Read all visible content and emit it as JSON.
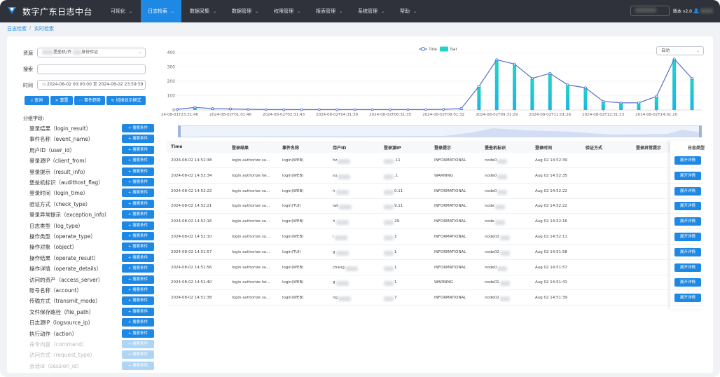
{
  "nav": {
    "logo": "数字广东日志中台",
    "menu": [
      "可视化",
      "日志检索",
      "数据采集",
      "数据管理",
      "权限管理",
      "报表管理",
      "系统管理",
      "帮助"
    ],
    "active_menu": 1,
    "version": "版本 v2.0"
  },
  "breadcrumb": [
    "日志检索",
    "实时检索"
  ],
  "form": {
    "resource_label": "资源",
    "resource_value_a": "堡垒机/齐",
    "resource_value_b": "身份验证",
    "search_label": "搜索",
    "time_label": "时间",
    "time_start": "2024-08-02 00:00:00",
    "time_sep": "至",
    "time_end": "2024-08-02 23:59:59",
    "buttons": [
      "查询",
      "重置",
      "事件趋势",
      "切换显示模式"
    ]
  },
  "group": {
    "title": "分组字段:",
    "button": "搜索条件",
    "fields": [
      "登录结果（login_result）",
      "事件名称（event_name）",
      "用户ID（user_id）",
      "登录源IP（client_from）",
      "登录提示（result_info）",
      "堡垒机标识（audithost_flag）",
      "登录时间（login_time）",
      "验证方式（check_type）",
      "登录异常提示（exception_info）",
      "日志类型（log_type）",
      "操作类型（operate_type）",
      "操作对象（object）",
      "操作结果（operate_result）",
      "操作详情（operate_details）",
      "访问的资产（access_server）",
      "账号名称（account）",
      "传输方式（transmit_mode）",
      "文件保存路径（file_path）",
      "日志源IP（logsource_ip）",
      "执行动作（action）",
      "命令内容（command）",
      "访问方式（request_type）",
      "会话id（session_id）"
    ],
    "faded_from": 20
  },
  "interval_select": "自动",
  "chart_data": {
    "type": "bar-line",
    "categories": [
      "2024-08-01T23:31:46",
      null,
      null,
      "2024-08-02T01:01:46",
      null,
      null,
      "2024-08-02T02:31:43",
      null,
      null,
      "2024-08-02T04:31:39",
      null,
      null,
      "2024-08-02T06:31:35",
      null,
      null,
      "2024-08-02T08:01:32",
      null,
      null,
      "2024-08-02T09:31:29",
      null,
      null,
      "2024-08-02T11:01:26",
      null,
      null,
      "2024-08-02T12:31:23",
      null,
      null,
      "2024-08-02T14:01:20",
      null,
      null
    ],
    "series": [
      {
        "name": "line",
        "type": "line",
        "color": "#5470c6",
        "values": [
          5,
          18,
          10,
          8,
          5,
          3,
          3,
          3,
          3,
          3,
          3,
          3,
          3,
          3,
          3,
          5,
          10,
          165,
          350,
          320,
          220,
          255,
          175,
          155,
          60,
          50,
          50,
          95,
          355,
          220
        ]
      },
      {
        "name": "bar",
        "type": "bar",
        "color": "#22d3c5",
        "values": [
          5,
          18,
          10,
          8,
          5,
          3,
          3,
          3,
          3,
          3,
          3,
          3,
          3,
          3,
          3,
          5,
          10,
          165,
          350,
          320,
          220,
          255,
          175,
          155,
          60,
          50,
          50,
          95,
          355,
          220
        ]
      }
    ],
    "ylim": [
      0,
      400
    ],
    "yticks": [
      0,
      100,
      200,
      300,
      400
    ],
    "grid": true,
    "legend": "top"
  },
  "table": {
    "columns": [
      "Time",
      "登录结果",
      "事件名称",
      "用户ID",
      "登录源IP",
      "登录提示",
      "堡垒机标识",
      "登录时间",
      "验证方式",
      "登录异常提示",
      "日志类型"
    ],
    "action": "展开详情",
    "rows": [
      {
        "time": "2024-08-02 14:52:38",
        "result": "login authorize su...",
        "event": "login(WEB)",
        "user": "hz",
        "ip": ".11",
        "hint": "INFORMATIONAL",
        "node": "node0",
        "login_time": "Aug 02 14:52:39"
      },
      {
        "time": "2024-08-02 14:52:34",
        "result": "login authorize fai...",
        "event": "login(WEB)",
        "user": "su",
        "ip": ".1",
        "hint": "WARNING",
        "node": "node0",
        "login_time": "Aug 02 14:52:35"
      },
      {
        "time": "2024-08-02 14:52:22",
        "result": "login authorize su...",
        "event": "login(WEB)",
        "user": "h",
        "ip": "0.11",
        "hint": "INFORMATIONAL",
        "node": "node0",
        "login_time": "Aug 02 14:52:22"
      },
      {
        "time": "2024-08-02 14:52:21",
        "result": "login authorize su...",
        "event": "login(TUI)",
        "user": "iwt",
        "ip": "9.11",
        "hint": "INFORMATIONAL",
        "node": "node",
        "login_time": "Aug 02 14:52:22"
      },
      {
        "time": "2024-08-02 14:52:16",
        "result": "login authorize su...",
        "event": "login(WEB)",
        "user": "h",
        "ip": "29.",
        "hint": "INFORMATIONAL",
        "node": "node",
        "login_time": "Aug 02 14:52:16"
      },
      {
        "time": "2024-08-02 14:52:10",
        "result": "login authorize su...",
        "event": "login(WEB)",
        "user": "i",
        "ip": "1",
        "hint": "INFORMATIONAL",
        "node": "node02",
        "login_time": "Aug 02 14:52:11"
      },
      {
        "time": "2024-08-02 14:51:57",
        "result": "login authorize su...",
        "event": "login(TUI)",
        "user": "g",
        "ip": "1",
        "hint": "INFORMATIONAL",
        "node": "node02",
        "login_time": "Aug 02 14:51:58"
      },
      {
        "time": "2024-08-02 14:51:56",
        "result": "login authorize su...",
        "event": "login(WEB)",
        "user": "chang",
        "ip": "1",
        "hint": "INFORMATIONAL",
        "node": "node0",
        "login_time": "Aug 02 14:51:57"
      },
      {
        "time": "2024-08-02 14:51:40",
        "result": "login authorize fai...",
        "event": "login(WEB)",
        "user": "g",
        "ip": "1",
        "hint": "WARNING",
        "node": "node01",
        "login_time": "Aug 02 14:51:41"
      },
      {
        "time": "2024-08-02 14:51:38",
        "result": "login authorize su...",
        "event": "login(WEB)",
        "user": "ng",
        "ip": "7",
        "hint": "INFORMATIONAL",
        "node": "node02",
        "login_time": "Aug 02 14:51:39"
      }
    ]
  }
}
